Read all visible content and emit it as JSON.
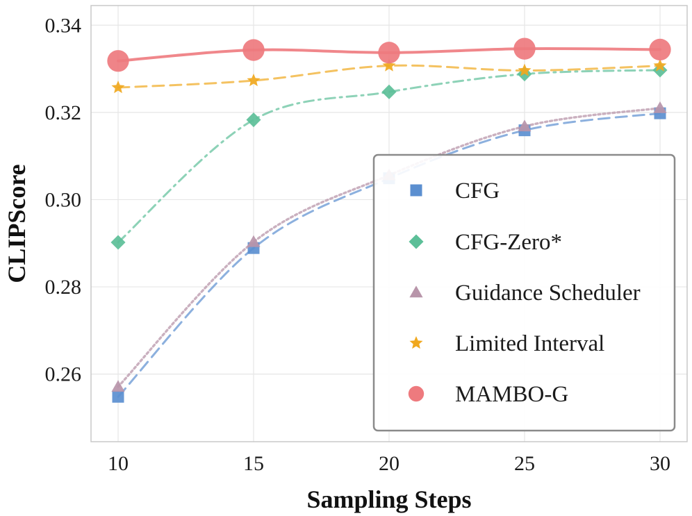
{
  "chart_data": {
    "type": "line",
    "title": "",
    "xlabel": "Sampling Steps",
    "ylabel": "CLIPScore",
    "x": [
      10,
      15,
      20,
      25,
      30
    ],
    "xticks": [
      "10",
      "15",
      "20",
      "25",
      "30"
    ],
    "yticks": [
      "0.26",
      "0.28",
      "0.30",
      "0.32",
      "0.34"
    ],
    "xlim": [
      9,
      31
    ],
    "ylim": [
      0.2445,
      0.3445
    ],
    "grid": true,
    "legend_position": "bottom-right",
    "series": [
      {
        "name": "CFG",
        "values": [
          0.2548,
          0.2889,
          0.3049,
          0.3159,
          0.3198
        ],
        "color": "#5b8fd0",
        "marker": "square",
        "linestyle": "dashed"
      },
      {
        "name": "CFG-Zero*",
        "values": [
          0.2902,
          0.3183,
          0.3247,
          0.3288,
          0.3297
        ],
        "color": "#5cbf98",
        "marker": "diamond",
        "linestyle": "dashdot"
      },
      {
        "name": "Guidance Scheduler",
        "values": [
          0.2571,
          0.2903,
          0.3056,
          0.3168,
          0.321
        ],
        "color": "#b895aa",
        "marker": "triangle",
        "linestyle": "dotted"
      },
      {
        "name": "Limited Interval",
        "values": [
          0.3257,
          0.3273,
          0.3307,
          0.3296,
          0.3307
        ],
        "color": "#f0a81e",
        "marker": "star",
        "linestyle": "dashed"
      },
      {
        "name": "MAMBO-G",
        "values": [
          0.3318,
          0.3343,
          0.3337,
          0.3346,
          0.3344
        ],
        "color": "#ee7a7e",
        "marker": "circle",
        "linestyle": "solid"
      }
    ]
  }
}
